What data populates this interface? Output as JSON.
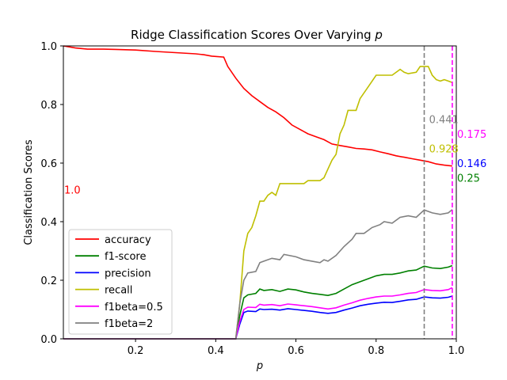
{
  "chart_data": {
    "type": "line",
    "title_prefix": "Ridge Classification Scores Over Varying ",
    "title_var": "p",
    "xlabel": "p",
    "ylabel": "Classification Scores",
    "xlim": [
      0.02,
      1.0
    ],
    "ylim": [
      0.0,
      1.0
    ],
    "x_ticks": [
      0.2,
      0.4,
      0.6,
      0.8,
      1.0
    ],
    "x_tick_labels": [
      "0.2",
      "0.4",
      "0.6",
      "0.8",
      "1.0"
    ],
    "y_ticks": [
      0.0,
      0.2,
      0.4,
      0.6,
      0.8,
      1.0
    ],
    "y_tick_labels": [
      "0.0",
      "0.2",
      "0.4",
      "0.6",
      "0.8",
      "1.0"
    ],
    "grid": false,
    "legend_position": "lower-left",
    "series": [
      {
        "name": "accuracy",
        "color": "#ff0000",
        "points": [
          [
            0.02,
            1.0
          ],
          [
            0.05,
            0.993
          ],
          [
            0.08,
            0.989
          ],
          [
            0.12,
            0.989
          ],
          [
            0.15,
            0.988
          ],
          [
            0.2,
            0.986
          ],
          [
            0.25,
            0.981
          ],
          [
            0.3,
            0.977
          ],
          [
            0.35,
            0.973
          ],
          [
            0.37,
            0.97
          ],
          [
            0.39,
            0.965
          ],
          [
            0.42,
            0.962
          ],
          [
            0.43,
            0.93
          ],
          [
            0.45,
            0.89
          ],
          [
            0.47,
            0.855
          ],
          [
            0.49,
            0.83
          ],
          [
            0.51,
            0.81
          ],
          [
            0.53,
            0.79
          ],
          [
            0.55,
            0.775
          ],
          [
            0.57,
            0.755
          ],
          [
            0.59,
            0.73
          ],
          [
            0.61,
            0.715
          ],
          [
            0.63,
            0.7
          ],
          [
            0.65,
            0.69
          ],
          [
            0.67,
            0.68
          ],
          [
            0.69,
            0.665
          ],
          [
            0.71,
            0.66
          ],
          [
            0.73,
            0.655
          ],
          [
            0.75,
            0.65
          ],
          [
            0.77,
            0.648
          ],
          [
            0.79,
            0.645
          ],
          [
            0.81,
            0.638
          ],
          [
            0.83,
            0.632
          ],
          [
            0.85,
            0.625
          ],
          [
            0.87,
            0.62
          ],
          [
            0.89,
            0.615
          ],
          [
            0.91,
            0.61
          ],
          [
            0.93,
            0.605
          ],
          [
            0.95,
            0.597
          ],
          [
            0.97,
            0.593
          ],
          [
            0.99,
            0.59
          ]
        ]
      },
      {
        "name": "f1-score",
        "color": "#008000",
        "points": [
          [
            0.02,
            0.0
          ],
          [
            0.45,
            0.0
          ],
          [
            0.46,
            0.08
          ],
          [
            0.47,
            0.14
          ],
          [
            0.48,
            0.15
          ],
          [
            0.5,
            0.155
          ],
          [
            0.51,
            0.17
          ],
          [
            0.52,
            0.165
          ],
          [
            0.54,
            0.168
          ],
          [
            0.56,
            0.162
          ],
          [
            0.58,
            0.17
          ],
          [
            0.6,
            0.167
          ],
          [
            0.62,
            0.16
          ],
          [
            0.64,
            0.155
          ],
          [
            0.66,
            0.152
          ],
          [
            0.68,
            0.148
          ],
          [
            0.7,
            0.155
          ],
          [
            0.72,
            0.17
          ],
          [
            0.74,
            0.185
          ],
          [
            0.76,
            0.195
          ],
          [
            0.78,
            0.205
          ],
          [
            0.8,
            0.215
          ],
          [
            0.82,
            0.22
          ],
          [
            0.84,
            0.22
          ],
          [
            0.86,
            0.225
          ],
          [
            0.88,
            0.232
          ],
          [
            0.9,
            0.235
          ],
          [
            0.92,
            0.248
          ],
          [
            0.94,
            0.242
          ],
          [
            0.96,
            0.24
          ],
          [
            0.98,
            0.245
          ],
          [
            0.99,
            0.25
          ]
        ]
      },
      {
        "name": "precision",
        "color": "#0000ff",
        "points": [
          [
            0.02,
            0.0
          ],
          [
            0.45,
            0.0
          ],
          [
            0.46,
            0.05
          ],
          [
            0.47,
            0.09
          ],
          [
            0.48,
            0.095
          ],
          [
            0.5,
            0.093
          ],
          [
            0.51,
            0.102
          ],
          [
            0.52,
            0.1
          ],
          [
            0.54,
            0.101
          ],
          [
            0.56,
            0.098
          ],
          [
            0.58,
            0.103
          ],
          [
            0.6,
            0.1
          ],
          [
            0.62,
            0.097
          ],
          [
            0.64,
            0.094
          ],
          [
            0.66,
            0.09
          ],
          [
            0.68,
            0.087
          ],
          [
            0.7,
            0.09
          ],
          [
            0.72,
            0.098
          ],
          [
            0.74,
            0.105
          ],
          [
            0.76,
            0.113
          ],
          [
            0.78,
            0.118
          ],
          [
            0.8,
            0.122
          ],
          [
            0.82,
            0.125
          ],
          [
            0.84,
            0.124
          ],
          [
            0.86,
            0.128
          ],
          [
            0.88,
            0.133
          ],
          [
            0.9,
            0.135
          ],
          [
            0.92,
            0.143
          ],
          [
            0.94,
            0.14
          ],
          [
            0.96,
            0.139
          ],
          [
            0.98,
            0.142
          ],
          [
            0.99,
            0.146
          ]
        ]
      },
      {
        "name": "recall",
        "color": "#bfbf00",
        "points": [
          [
            0.02,
            0.0
          ],
          [
            0.45,
            0.0
          ],
          [
            0.46,
            0.12
          ],
          [
            0.47,
            0.3
          ],
          [
            0.48,
            0.36
          ],
          [
            0.49,
            0.38
          ],
          [
            0.5,
            0.42
          ],
          [
            0.51,
            0.47
          ],
          [
            0.52,
            0.47
          ],
          [
            0.53,
            0.49
          ],
          [
            0.54,
            0.5
          ],
          [
            0.55,
            0.49
          ],
          [
            0.56,
            0.53
          ],
          [
            0.6,
            0.53
          ],
          [
            0.62,
            0.53
          ],
          [
            0.63,
            0.54
          ],
          [
            0.66,
            0.54
          ],
          [
            0.67,
            0.55
          ],
          [
            0.68,
            0.58
          ],
          [
            0.69,
            0.61
          ],
          [
            0.7,
            0.63
          ],
          [
            0.71,
            0.7
          ],
          [
            0.72,
            0.73
          ],
          [
            0.73,
            0.78
          ],
          [
            0.75,
            0.78
          ],
          [
            0.76,
            0.82
          ],
          [
            0.78,
            0.86
          ],
          [
            0.8,
            0.9
          ],
          [
            0.82,
            0.9
          ],
          [
            0.84,
            0.9
          ],
          [
            0.86,
            0.92
          ],
          [
            0.87,
            0.91
          ],
          [
            0.88,
            0.905
          ],
          [
            0.9,
            0.91
          ],
          [
            0.91,
            0.93
          ],
          [
            0.93,
            0.93
          ],
          [
            0.94,
            0.9
          ],
          [
            0.95,
            0.885
          ],
          [
            0.96,
            0.88
          ],
          [
            0.97,
            0.885
          ],
          [
            0.98,
            0.88
          ],
          [
            0.99,
            0.875
          ]
        ]
      },
      {
        "name": "f1beta=0.5",
        "color": "#ff00ff",
        "points": [
          [
            0.02,
            0.0
          ],
          [
            0.45,
            0.0
          ],
          [
            0.46,
            0.06
          ],
          [
            0.47,
            0.1
          ],
          [
            0.48,
            0.108
          ],
          [
            0.5,
            0.107
          ],
          [
            0.51,
            0.118
          ],
          [
            0.52,
            0.115
          ],
          [
            0.54,
            0.117
          ],
          [
            0.56,
            0.113
          ],
          [
            0.58,
            0.119
          ],
          [
            0.6,
            0.116
          ],
          [
            0.62,
            0.113
          ],
          [
            0.64,
            0.11
          ],
          [
            0.66,
            0.106
          ],
          [
            0.68,
            0.102
          ],
          [
            0.7,
            0.106
          ],
          [
            0.72,
            0.115
          ],
          [
            0.74,
            0.123
          ],
          [
            0.76,
            0.132
          ],
          [
            0.78,
            0.138
          ],
          [
            0.8,
            0.143
          ],
          [
            0.82,
            0.146
          ],
          [
            0.84,
            0.146
          ],
          [
            0.86,
            0.15
          ],
          [
            0.88,
            0.155
          ],
          [
            0.9,
            0.158
          ],
          [
            0.92,
            0.168
          ],
          [
            0.94,
            0.165
          ],
          [
            0.96,
            0.164
          ],
          [
            0.98,
            0.168
          ],
          [
            0.99,
            0.175
          ]
        ]
      },
      {
        "name": "f1beta=2",
        "color": "#808080",
        "points": [
          [
            0.02,
            0.0
          ],
          [
            0.45,
            0.0
          ],
          [
            0.46,
            0.12
          ],
          [
            0.47,
            0.2
          ],
          [
            0.48,
            0.225
          ],
          [
            0.5,
            0.23
          ],
          [
            0.51,
            0.26
          ],
          [
            0.52,
            0.265
          ],
          [
            0.54,
            0.275
          ],
          [
            0.56,
            0.27
          ],
          [
            0.57,
            0.288
          ],
          [
            0.6,
            0.28
          ],
          [
            0.62,
            0.27
          ],
          [
            0.64,
            0.265
          ],
          [
            0.66,
            0.26
          ],
          [
            0.67,
            0.27
          ],
          [
            0.68,
            0.265
          ],
          [
            0.7,
            0.285
          ],
          [
            0.72,
            0.315
          ],
          [
            0.74,
            0.34
          ],
          [
            0.75,
            0.36
          ],
          [
            0.77,
            0.36
          ],
          [
            0.79,
            0.38
          ],
          [
            0.81,
            0.39
          ],
          [
            0.82,
            0.4
          ],
          [
            0.84,
            0.395
          ],
          [
            0.86,
            0.415
          ],
          [
            0.88,
            0.42
          ],
          [
            0.9,
            0.415
          ],
          [
            0.92,
            0.44
          ],
          [
            0.94,
            0.43
          ],
          [
            0.96,
            0.425
          ],
          [
            0.98,
            0.43
          ],
          [
            0.99,
            0.441
          ]
        ]
      }
    ],
    "vlines": [
      {
        "x": 0.92,
        "color": "#808080",
        "style": "dashed"
      },
      {
        "x": 0.99,
        "color": "#ff00ff",
        "style": "dashed"
      }
    ],
    "annotations": [
      {
        "text": "1.0",
        "x": 0.02,
        "y": 0.51,
        "color": "#ff0000"
      },
      {
        "text": "0.441",
        "x": 0.93,
        "y": 0.75,
        "color": "#808080"
      },
      {
        "text": "0.175",
        "x": 1.0,
        "y": 0.7,
        "color": "#ff00ff"
      },
      {
        "text": "0.928",
        "x": 0.93,
        "y": 0.65,
        "color": "#bfbf00"
      },
      {
        "text": "0.146",
        "x": 1.0,
        "y": 0.6,
        "color": "#0000ff"
      },
      {
        "text": "0.25",
        "x": 1.0,
        "y": 0.55,
        "color": "#008000"
      }
    ]
  }
}
